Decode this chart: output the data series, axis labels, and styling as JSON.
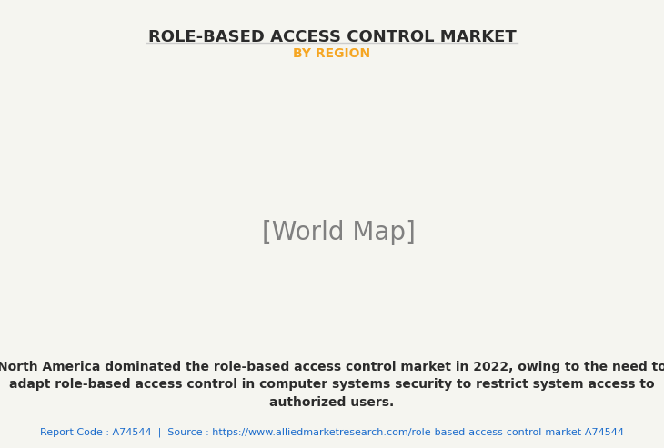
{
  "title": "ROLE-BASED ACCESS CONTROL MARKET",
  "subtitle": "BY REGION",
  "title_color": "#2b2b2b",
  "subtitle_color": "#f5a623",
  "background_color": "#f5f5f0",
  "map_country_color": "#8fbc8f",
  "map_highlight_color": "#f0f0f5",
  "map_border_color": "#6699bb",
  "map_shadow_color": "#999999",
  "description_text": "North America dominated the role-based access control market in 2022, owing to the need to\nadapt role-based access control in computer systems security to restrict system access to\nauthorized users.",
  "footer_text": "Report Code : A74544  |  Source : https://www.alliedmarketresearch.com/role-based-access-control-market-A74544",
  "footer_color": "#1a6bcc",
  "desc_color": "#2b2b2b",
  "separator_color": "#cccccc",
  "title_fontsize": 13,
  "subtitle_fontsize": 10,
  "desc_fontsize": 10,
  "footer_fontsize": 8
}
